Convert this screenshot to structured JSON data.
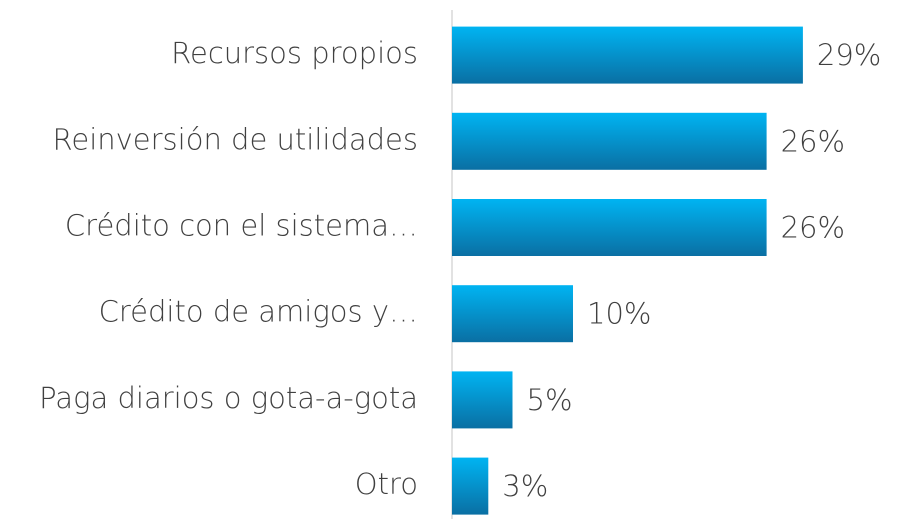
{
  "chart_data": {
    "type": "bar",
    "orientation": "horizontal",
    "categories": [
      "Recursos propios",
      "Reinversión de utilidades",
      "Crédito con el sistema…",
      "Crédito de amigos y…",
      "Paga diarios o gota-a-gota",
      "Otro"
    ],
    "values": [
      29,
      26,
      26,
      10,
      5,
      3
    ],
    "value_labels": [
      "29%",
      "26%",
      "26%",
      "10%",
      "5%",
      "3%"
    ],
    "color": "#00b4f2"
  }
}
